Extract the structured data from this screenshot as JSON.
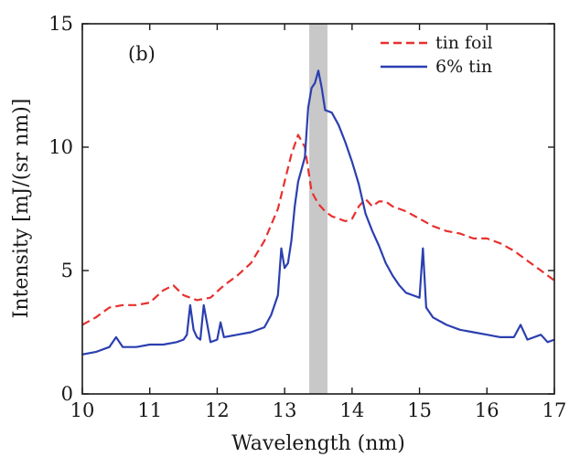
{
  "chart_data": {
    "type": "line",
    "panel_label": "(b)",
    "xlabel": "Wavelength (nm)",
    "ylabel": "Intensity [mJ/(sr nm)]",
    "xlim": [
      10,
      17
    ],
    "ylim": [
      0,
      15
    ],
    "x_ticks": [
      "10",
      "11",
      "12",
      "13",
      "14",
      "15",
      "16",
      "17"
    ],
    "y_ticks": [
      "0",
      "5",
      "10",
      "15"
    ],
    "grid": false,
    "legend_position": "top-right",
    "highlight_band": {
      "x_start": 13.365,
      "x_end": 13.635,
      "color": "#c8c8c8"
    },
    "series": [
      {
        "name": "tin foil",
        "color": "#e8302e",
        "style": "dashed",
        "x": [
          10.0,
          10.2,
          10.4,
          10.6,
          10.8,
          11.0,
          11.2,
          11.35,
          11.5,
          11.7,
          11.9,
          12.1,
          12.3,
          12.5,
          12.7,
          12.9,
          13.0,
          13.1,
          13.2,
          13.3,
          13.4,
          13.5,
          13.6,
          13.7,
          13.8,
          13.9,
          14.0,
          14.1,
          14.2,
          14.3,
          14.4,
          14.5,
          14.6,
          14.8,
          15.0,
          15.2,
          15.4,
          15.6,
          15.8,
          16.0,
          16.2,
          16.4,
          16.6,
          16.8,
          17.0
        ],
        "values": [
          2.8,
          3.1,
          3.5,
          3.6,
          3.6,
          3.7,
          4.2,
          4.4,
          4.0,
          3.8,
          3.9,
          4.4,
          4.8,
          5.3,
          6.2,
          7.5,
          8.6,
          9.7,
          10.5,
          10.0,
          8.2,
          7.7,
          7.4,
          7.2,
          7.1,
          7.0,
          7.1,
          7.6,
          7.9,
          7.6,
          7.8,
          7.8,
          7.6,
          7.4,
          7.1,
          6.8,
          6.6,
          6.5,
          6.3,
          6.3,
          6.1,
          5.8,
          5.4,
          5.0,
          4.6
        ]
      },
      {
        "name": "6% tin",
        "color": "#2b3fb0",
        "style": "solid",
        "x": [
          10.0,
          10.2,
          10.4,
          10.5,
          10.6,
          10.8,
          11.0,
          11.2,
          11.4,
          11.5,
          11.55,
          11.6,
          11.65,
          11.7,
          11.75,
          11.8,
          11.9,
          12.0,
          12.05,
          12.1,
          12.3,
          12.5,
          12.7,
          12.8,
          12.9,
          12.95,
          13.0,
          13.05,
          13.1,
          13.15,
          13.2,
          13.3,
          13.35,
          13.4,
          13.45,
          13.5,
          13.55,
          13.6,
          13.7,
          13.8,
          13.9,
          14.0,
          14.1,
          14.2,
          14.3,
          14.4,
          14.5,
          14.6,
          14.7,
          14.8,
          14.9,
          15.0,
          15.05,
          15.1,
          15.2,
          15.4,
          15.6,
          15.8,
          16.0,
          16.2,
          16.4,
          16.5,
          16.6,
          16.8,
          16.9,
          17.0
        ],
        "values": [
          1.6,
          1.7,
          1.9,
          2.3,
          1.9,
          1.9,
          2.0,
          2.0,
          2.1,
          2.2,
          2.4,
          3.6,
          2.6,
          2.3,
          2.2,
          3.6,
          2.1,
          2.2,
          2.9,
          2.3,
          2.4,
          2.5,
          2.7,
          3.2,
          4.0,
          5.9,
          5.1,
          5.3,
          6.2,
          7.6,
          8.6,
          9.6,
          11.6,
          12.4,
          12.6,
          13.1,
          12.4,
          11.5,
          11.4,
          10.9,
          10.2,
          9.4,
          8.5,
          7.3,
          6.6,
          6.0,
          5.3,
          4.8,
          4.4,
          4.1,
          4.0,
          3.9,
          5.9,
          3.5,
          3.1,
          2.8,
          2.6,
          2.5,
          2.4,
          2.3,
          2.3,
          2.8,
          2.2,
          2.4,
          2.1,
          2.2
        ]
      }
    ]
  }
}
